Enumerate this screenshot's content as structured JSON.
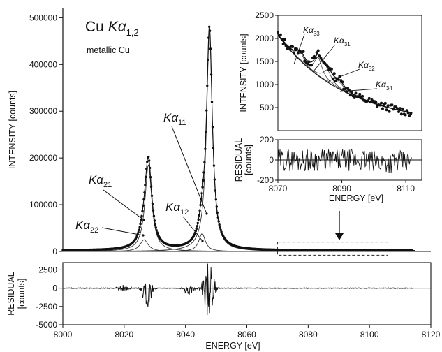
{
  "chart_data": [
    {
      "type": "line",
      "panel": "main",
      "title": "Cu Kα1,2",
      "title_parts": {
        "prefix": "Cu ",
        "symbol": "Kα",
        "sub": "1,2"
      },
      "subtitle": "metallic Cu",
      "ylabel": "INTENSITY  [counts]",
      "xlim": [
        8000,
        8120
      ],
      "ylim": [
        0,
        520000
      ],
      "yticks": [
        0,
        100000,
        200000,
        300000,
        400000,
        500000
      ],
      "ytick_labels": [
        "0",
        "100000",
        "200000",
        "300000",
        "400000",
        "500000"
      ],
      "series": [
        {
          "name": "Kα11",
          "label_symbol": "Kα",
          "label_sub": "11",
          "center": 8047.8,
          "amp": 470000,
          "width": 1.15
        },
        {
          "name": "Kα12",
          "label_symbol": "Kα",
          "label_sub": "12",
          "center": 8045.4,
          "amp": 38000,
          "width": 1.3
        },
        {
          "name": "Kα21",
          "label_symbol": "Kα",
          "label_sub": "21",
          "center": 8027.9,
          "amp": 185000,
          "width": 1.35
        },
        {
          "name": "Kα22",
          "label_symbol": "Kα",
          "label_sub": "22",
          "center": 8026.5,
          "amp": 25000,
          "width": 1.6
        }
      ],
      "baseline": 2000,
      "zoom_box": {
        "x": [
          8070,
          8106
        ],
        "y": [
          -8000,
          20000
        ]
      }
    },
    {
      "type": "line",
      "panel": "residual-main",
      "ylabel": "RESIDUAL\n[counts]",
      "ylabel_lines": [
        "RESIDUAL",
        "[counts]"
      ],
      "xlabel": "ENERGY  [eV]",
      "xlim": [
        8000,
        8120
      ],
      "ylim": [
        -5000,
        3500
      ],
      "xticks": [
        8000,
        8020,
        8040,
        8060,
        8080,
        8100,
        8120
      ],
      "xtick_labels": [
        "8000",
        "8020",
        "8040",
        "8060",
        "8080",
        "8100",
        "8120"
      ],
      "yticks": [
        -5000,
        -2500,
        0,
        2500
      ],
      "ytick_labels": [
        "-5000",
        "-2500",
        "0",
        "2500"
      ]
    },
    {
      "type": "scatter",
      "panel": "inset",
      "ylabel": "INTENSITY  [counts]",
      "xlim": [
        8070,
        8115
      ],
      "ylim": [
        0,
        2500
      ],
      "yticks": [
        500,
        1000,
        1500,
        2000,
        2500
      ],
      "ytick_labels": [
        "500",
        "1000",
        "1500",
        "2000",
        "2500"
      ],
      "series": [
        {
          "name": "Kα33",
          "label_symbol": "Kα",
          "label_sub": "33",
          "center": 8077.0,
          "amp": 190,
          "width": 1.4
        },
        {
          "name": "Kα31",
          "label_symbol": "Kα",
          "label_sub": "31",
          "center": 8082.6,
          "amp": 390,
          "width": 1.5
        },
        {
          "name": "Kα32",
          "label_symbol": "Kα",
          "label_sub": "32",
          "center": 8085.5,
          "amp": 260,
          "width": 1.6
        },
        {
          "name": "Kα34",
          "label_symbol": "Kα",
          "label_sub": "34",
          "center": 8089.2,
          "amp": 150,
          "width": 1.8
        }
      ],
      "background": {
        "a": 120,
        "b": 1950,
        "tau": 21
      }
    },
    {
      "type": "line",
      "panel": "residual-inset",
      "ylabel": "RESIDUAL\n[counts]",
      "ylabel_lines": [
        "RESIDUAL",
        "[counts]"
      ],
      "xlabel": "ENERGY  [eV]",
      "xlim": [
        8070,
        8115
      ],
      "ylim": [
        -200,
        200
      ],
      "xticks": [
        8070,
        8090,
        8110
      ],
      "xtick_labels": [
        "8070",
        "8090",
        "8110"
      ],
      "yticks": [
        -200,
        0,
        200
      ],
      "ytick_labels": [
        "-200",
        "0",
        "200"
      ]
    }
  ]
}
